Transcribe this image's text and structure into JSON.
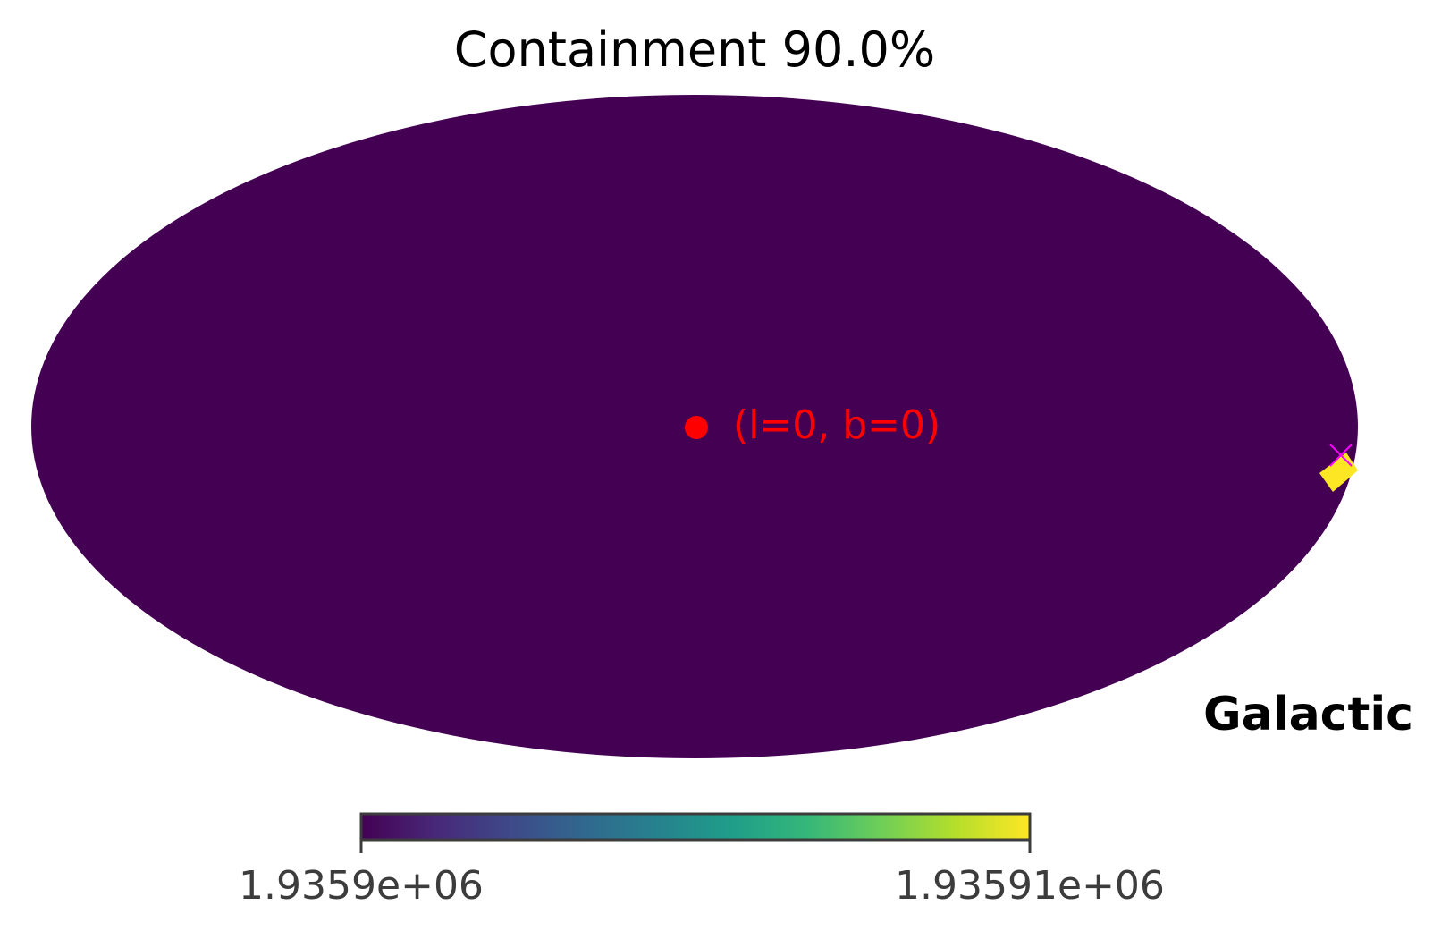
{
  "map": {
    "title": "Containment 90.0%",
    "coordinate_system": "Galactic",
    "projection": "mollweide",
    "background_color": "#440154",
    "region_color": "#fde725",
    "marker": {
      "label": "(l=0, b=0)",
      "l": 0,
      "b": 0,
      "color": "#ff0000"
    },
    "source_marker": {
      "symbol": "x",
      "color": "#ff00ff"
    }
  },
  "colorbar": {
    "colormap": "viridis",
    "min_label": "1.9359e+06",
    "max_label": "1.93591e+06",
    "min": 1935900,
    "max": 1935910,
    "stops": [
      "#440154",
      "#482878",
      "#3e4989",
      "#31688e",
      "#26828e",
      "#1f9e89",
      "#35b779",
      "#6ece58",
      "#b5de2b",
      "#fde725"
    ]
  }
}
